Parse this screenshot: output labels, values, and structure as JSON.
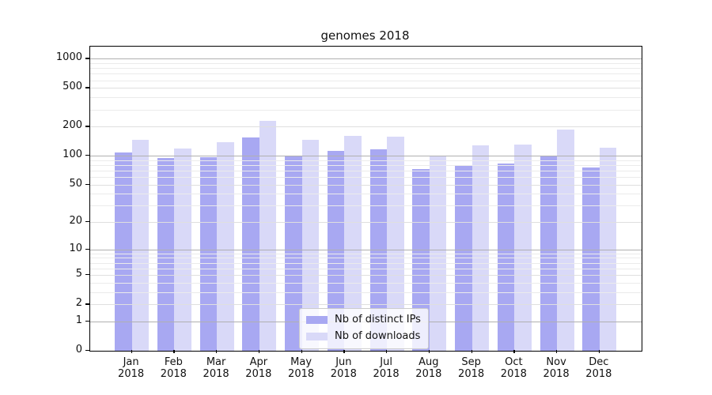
{
  "title": "genomes 2018",
  "chart_data": {
    "type": "bar",
    "title": "genomes 2018",
    "categories": [
      "Jan",
      "Feb",
      "Mar",
      "Apr",
      "May",
      "Jun",
      "Jul",
      "Aug",
      "Sep",
      "Oct",
      "Nov",
      "Dec"
    ],
    "category_year": "2018",
    "series": [
      {
        "name": "Nb of distinct IPs",
        "color": "#a8a8f2",
        "values": [
          108,
          94,
          97,
          154,
          100,
          111,
          117,
          73,
          80,
          83,
          100,
          75
        ]
      },
      {
        "name": "Nb of downloads",
        "color": "#d9d9f8",
        "values": [
          146,
          119,
          137,
          228,
          146,
          161,
          157,
          100,
          127,
          130,
          187,
          121
        ]
      }
    ],
    "yscale": "log1p",
    "ylim": [
      0,
      1330
    ],
    "y_ticks": [
      0,
      1,
      2,
      5,
      10,
      20,
      50,
      100,
      200,
      500,
      1000
    ],
    "grid": {
      "major_lines": [
        1,
        10,
        100,
        1000
      ],
      "sub_lines": [
        2,
        5,
        20,
        50,
        200,
        500
      ],
      "minor_lines": [
        3,
        4,
        6,
        7,
        8,
        9,
        30,
        40,
        60,
        70,
        80,
        90,
        300,
        400,
        600,
        700,
        800,
        900
      ],
      "major_color": "#b0b0b0",
      "sub_color": "#dfdfdf",
      "minor_color": "#ebebeb"
    },
    "legend_position": "lower center"
  },
  "legend": {
    "items": [
      {
        "label": "Nb of distinct IPs"
      },
      {
        "label": "Nb of downloads"
      }
    ]
  }
}
